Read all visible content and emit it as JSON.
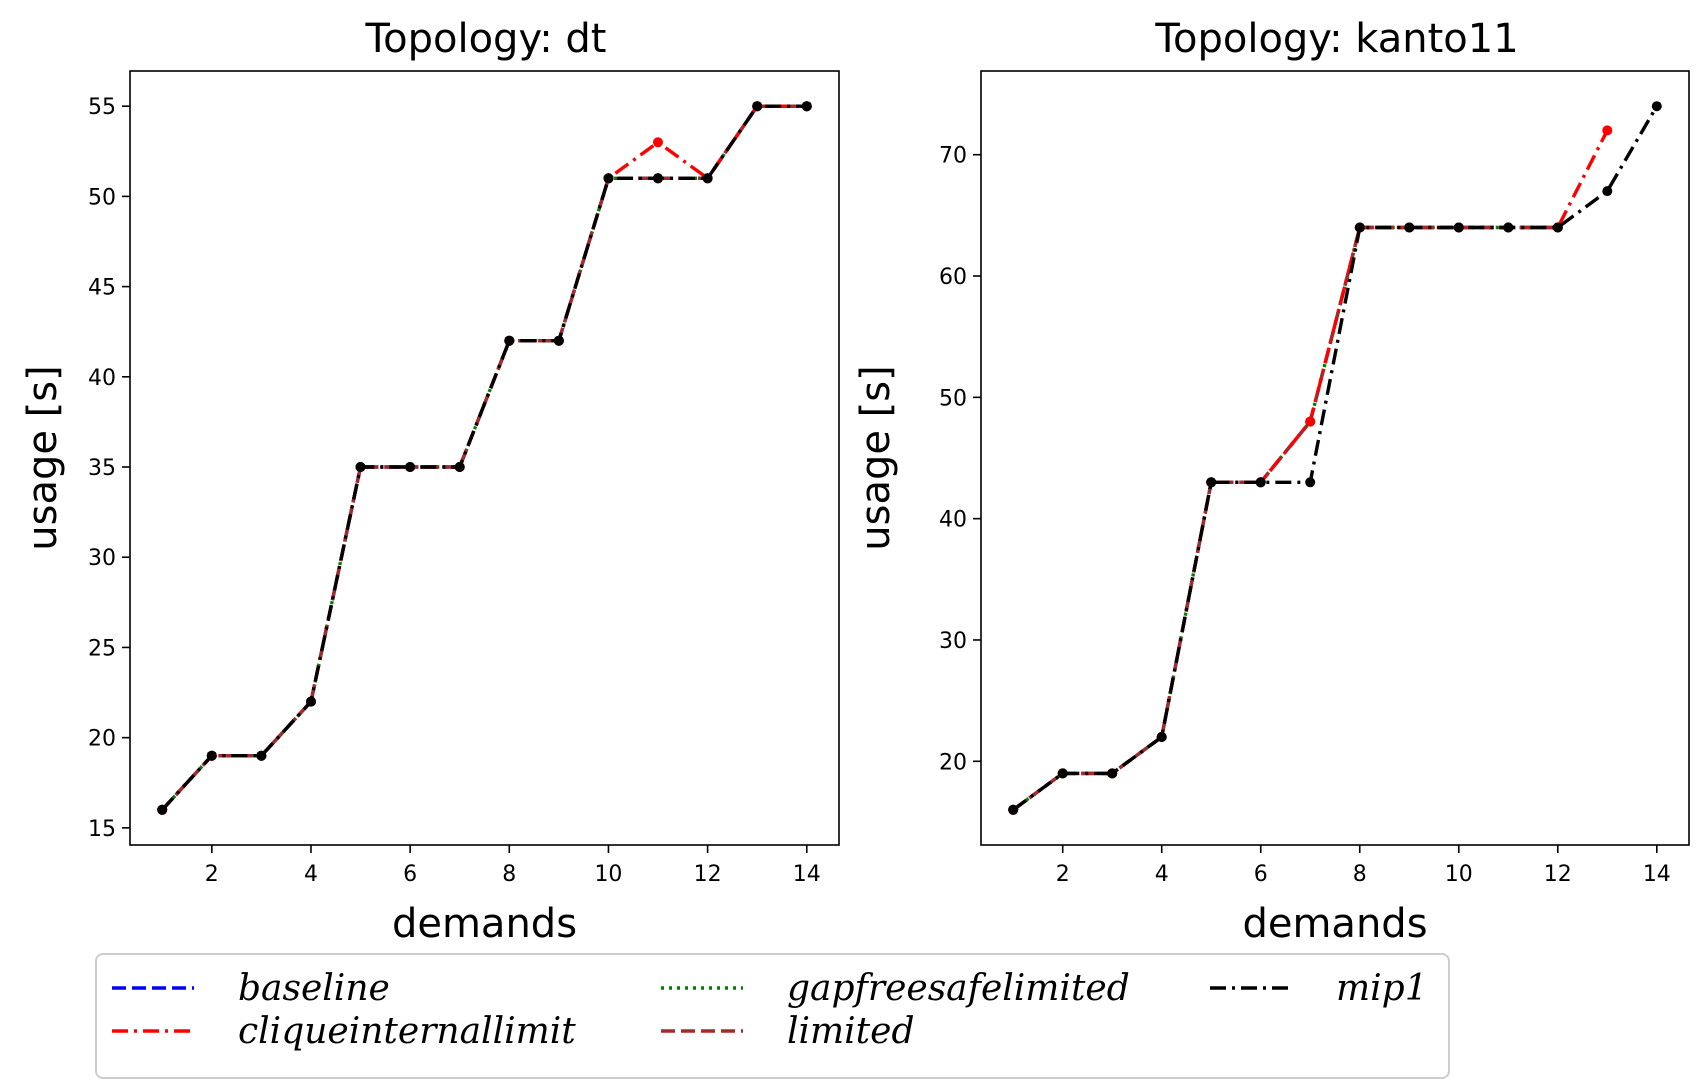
{
  "chart_data": [
    {
      "type": "line",
      "title": "Topology: dt",
      "xlabel": "demands",
      "ylabel": "usage [s]",
      "xlim": [
        0.35,
        14.65
      ],
      "ylim": [
        14.05,
        56.95
      ],
      "xticks": [
        2,
        4,
        6,
        8,
        10,
        12,
        14
      ],
      "yticks": [
        15,
        20,
        25,
        30,
        35,
        40,
        45,
        50,
        55
      ],
      "series": [
        {
          "name": "baseline",
          "x": [
            1,
            2,
            3,
            4,
            5,
            6,
            7,
            8,
            9,
            10,
            11,
            12,
            13,
            14
          ],
          "y": [
            16,
            19,
            19,
            22,
            35,
            35,
            35,
            42,
            42,
            51,
            51,
            51,
            55,
            55
          ]
        },
        {
          "name": "cliqueinternallimit",
          "x": [
            1,
            2,
            3,
            4,
            5,
            6,
            7,
            8,
            9,
            10,
            11,
            12,
            13,
            14
          ],
          "y": [
            16,
            19,
            19,
            22,
            35,
            35,
            35,
            42,
            42,
            51,
            53,
            51,
            55,
            55
          ]
        },
        {
          "name": "gapfreesafelimited",
          "x": [
            1,
            2,
            3,
            4,
            5,
            6,
            7,
            8,
            9,
            10,
            11,
            12,
            13,
            14
          ],
          "y": [
            16,
            19,
            19,
            22,
            35,
            35,
            35,
            42,
            42,
            51,
            51,
            51,
            55,
            55
          ]
        },
        {
          "name": "limited",
          "x": [
            1,
            2,
            3,
            4,
            5,
            6,
            7,
            8,
            9,
            10,
            11,
            12,
            13,
            14
          ],
          "y": [
            16,
            19,
            19,
            22,
            35,
            35,
            35,
            42,
            42,
            51,
            51,
            51,
            55,
            55
          ]
        },
        {
          "name": "mip1",
          "x": [
            1,
            2,
            3,
            4,
            5,
            6,
            7,
            8,
            9,
            10,
            11,
            12,
            13,
            14
          ],
          "y": [
            16,
            19,
            19,
            22,
            35,
            35,
            35,
            42,
            42,
            51,
            51,
            51,
            55,
            55
          ]
        }
      ]
    },
    {
      "type": "line",
      "title": "Topology: kanto11",
      "xlabel": "demands",
      "ylabel": "usage [s]",
      "xlim": [
        0.35,
        14.65
      ],
      "ylim": [
        13.1,
        76.9
      ],
      "xticks": [
        2,
        4,
        6,
        8,
        10,
        12,
        14
      ],
      "yticks": [
        20,
        30,
        40,
        50,
        60,
        70
      ],
      "series": [
        {
          "name": "baseline",
          "x": [
            1,
            2,
            3,
            4,
            5,
            6,
            7,
            8,
            9,
            10,
            11,
            12
          ],
          "y": [
            16,
            19,
            19,
            22,
            43,
            43,
            48,
            64,
            64,
            64,
            64,
            64
          ]
        },
        {
          "name": "cliqueinternallimit",
          "x": [
            1,
            2,
            3,
            4,
            5,
            6,
            7,
            8,
            9,
            10,
            11,
            12,
            13
          ],
          "y": [
            16,
            19,
            19,
            22,
            43,
            43,
            48,
            64,
            64,
            64,
            64,
            64,
            72
          ]
        },
        {
          "name": "gapfreesafelimited",
          "x": [
            1,
            2,
            3,
            4,
            5,
            6,
            7,
            8,
            9,
            10,
            11,
            12
          ],
          "y": [
            16,
            19,
            19,
            22,
            43,
            43,
            48,
            64,
            64,
            64,
            64,
            64
          ]
        },
        {
          "name": "limited",
          "x": [
            1,
            2,
            3,
            4,
            5,
            6,
            7,
            8,
            9,
            10,
            11,
            12
          ],
          "y": [
            16,
            19,
            19,
            22,
            43,
            43,
            48,
            64,
            64,
            64,
            64,
            64
          ]
        },
        {
          "name": "mip1",
          "x": [
            1,
            2,
            3,
            4,
            5,
            6,
            7,
            8,
            9,
            10,
            11,
            12,
            13,
            14
          ],
          "y": [
            16,
            19,
            19,
            22,
            43,
            43,
            43,
            64,
            64,
            64,
            64,
            64,
            67,
            74
          ]
        }
      ]
    }
  ],
  "legend": {
    "placement": "bottom",
    "entries": [
      {
        "label": "baseline",
        "color": "#0000ff",
        "dash": "dashed"
      },
      {
        "label": "cliqueinternallimit",
        "color": "#ff0000",
        "dash": "dashdot"
      },
      {
        "label": "gapfreesafelimited",
        "color": "#008000",
        "dash": "dotted"
      },
      {
        "label": "limited",
        "color": "#a52a2a",
        "dash": "dashed"
      },
      {
        "label": "mip1",
        "color": "#000000",
        "dash": "dashdot"
      }
    ]
  },
  "styles": {
    "colors": {
      "baseline": "#0000ff",
      "cliqueinternallimit": "#ff0000",
      "gapfreesafelimited": "#008000",
      "limited": "#a52a2a",
      "mip1": "#000000"
    },
    "dash": {
      "baseline": "dashed",
      "cliqueinternallimit": "dashdot",
      "gapfreesafelimited": "dotted",
      "limited": "dashed",
      "mip1": "dashdot"
    },
    "draw_order": [
      "baseline",
      "gapfreesafelimited",
      "limited",
      "cliqueinternallimit",
      "mip1"
    ]
  }
}
